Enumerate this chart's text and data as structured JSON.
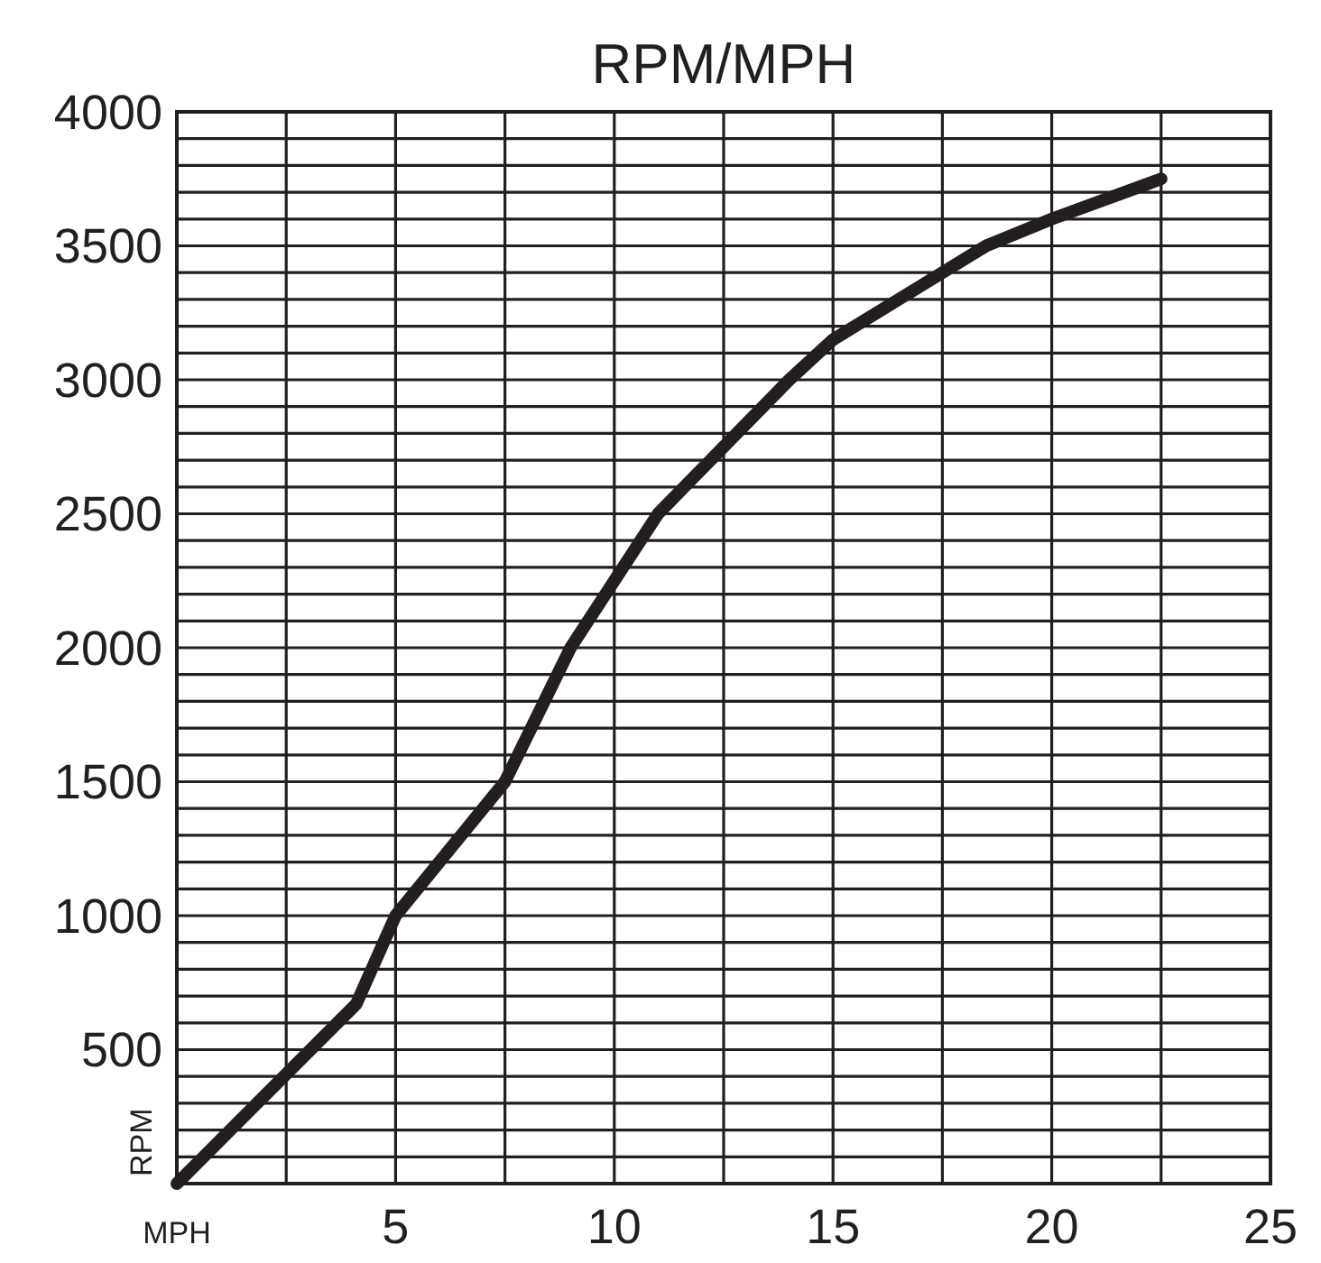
{
  "chart_data": {
    "type": "line",
    "title": "RPM/MPH",
    "xlabel": "MPH",
    "ylabel": "RPM",
    "x": [
      0,
      4.1,
      5,
      7.5,
      9,
      11,
      14,
      15,
      18.5,
      20,
      22.5
    ],
    "series": [
      {
        "color": "#231f20",
        "values": [
          0,
          670,
          1000,
          1500,
          2000,
          2500,
          3000,
          3150,
          3500,
          3600,
          3750
        ]
      }
    ],
    "xlim": [
      0,
      25
    ],
    "xticks": [
      {
        "value": 0,
        "label": null
      },
      {
        "value": 2.5,
        "label": null
      },
      5,
      {
        "value": 7.5,
        "label": null
      },
      10,
      {
        "value": 12.5,
        "label": null
      },
      15,
      {
        "value": 17.5,
        "label": null
      },
      20,
      {
        "value": 22.5,
        "label": null
      },
      25
    ],
    "ylim": [
      0,
      4000
    ],
    "yticks": [
      {
        "value": 0,
        "label": null
      },
      {
        "value": 100,
        "label": null
      },
      {
        "value": 200,
        "label": null
      },
      {
        "value": 300,
        "label": null
      },
      {
        "value": 400,
        "label": null
      },
      500,
      {
        "value": 600,
        "label": null
      },
      {
        "value": 700,
        "label": null
      },
      {
        "value": 800,
        "label": null
      },
      {
        "value": 900,
        "label": null
      },
      1000,
      {
        "value": 1100,
        "label": null
      },
      {
        "value": 1200,
        "label": null
      },
      {
        "value": 1300,
        "label": null
      },
      {
        "value": 1400,
        "label": null
      },
      1500,
      {
        "value": 1600,
        "label": null
      },
      {
        "value": 1700,
        "label": null
      },
      {
        "value": 1800,
        "label": null
      },
      {
        "value": 1900,
        "label": null
      },
      2000,
      {
        "value": 2100,
        "label": null
      },
      {
        "value": 2200,
        "label": null
      },
      {
        "value": 2300,
        "label": null
      },
      {
        "value": 2400,
        "label": null
      },
      2500,
      {
        "value": 2600,
        "label": null
      },
      {
        "value": 2700,
        "label": null
      },
      {
        "value": 2800,
        "label": null
      },
      {
        "value": 2900,
        "label": null
      },
      3000,
      {
        "value": 3100,
        "label": null
      },
      {
        "value": 3200,
        "label": null
      },
      {
        "value": 3300,
        "label": null
      },
      {
        "value": 3400,
        "label": null
      },
      3500,
      {
        "value": 3600,
        "label": null
      },
      {
        "value": 3700,
        "label": null
      },
      {
        "value": 3800,
        "label": null
      },
      {
        "value": 3900,
        "label": null
      },
      4000
    ],
    "grid": true,
    "marker": "none",
    "line_style": "solid"
  }
}
